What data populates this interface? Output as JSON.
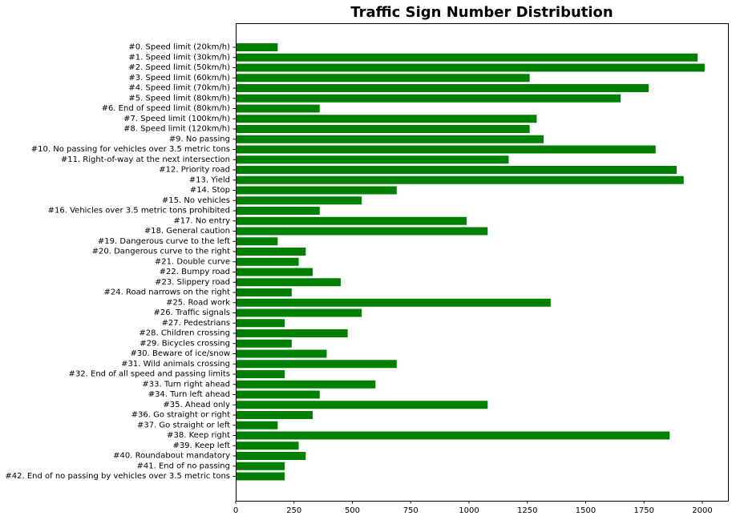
{
  "chart_data": {
    "type": "bar",
    "orientation": "horizontal",
    "title": "Traffic Sign Number Distribution",
    "xlabel": "",
    "ylabel": "",
    "xlim": [
      0,
      2110
    ],
    "xticks": [
      0,
      250,
      500,
      750,
      1000,
      1250,
      1500,
      1750,
      2000
    ],
    "bar_color": "#008000",
    "grid": false,
    "categories": [
      "#0. Speed limit (20km/h)",
      "#1. Speed limit (30km/h)",
      "#2. Speed limit (50km/h)",
      "#3. Speed limit (60km/h)",
      "#4. Speed limit (70km/h)",
      "#5. Speed limit (80km/h)",
      "#6. End of speed limit (80km/h)",
      "#7. Speed limit (100km/h)",
      "#8. Speed limit (120km/h)",
      "#9. No passing",
      "#10. No passing for vehicles over 3.5 metric tons",
      "#11. Right-of-way at the next intersection",
      "#12. Priority road",
      "#13. Yield",
      "#14. Stop",
      "#15. No vehicles",
      "#16. Vehicles over 3.5 metric tons prohibited",
      "#17. No entry",
      "#18. General caution",
      "#19. Dangerous curve to the left",
      "#20. Dangerous curve to the right",
      "#21. Double curve",
      "#22. Bumpy road",
      "#23. Slippery road",
      "#24. Road narrows on the right",
      "#25. Road work",
      "#26. Traffic signals",
      "#27. Pedestrians",
      "#28. Children crossing",
      "#29. Bicycles crossing",
      "#30. Beware of ice/snow",
      "#31. Wild animals crossing",
      "#32. End of all speed and passing limits",
      "#33. Turn right ahead",
      "#34. Turn left ahead",
      "#35. Ahead only",
      "#36. Go straight or right",
      "#37. Go straight or left",
      "#38. Keep right",
      "#39. Keep left",
      "#40. Roundabout mandatory",
      "#41. End of no passing",
      "#42. End of no passing by vehicles over 3.5 metric tons"
    ],
    "values": [
      180,
      1980,
      2010,
      1260,
      1770,
      1650,
      360,
      1290,
      1260,
      1320,
      1800,
      1170,
      1890,
      1920,
      690,
      540,
      360,
      990,
      1080,
      180,
      300,
      270,
      330,
      450,
      240,
      1350,
      540,
      210,
      480,
      240,
      390,
      690,
      210,
      599,
      360,
      1080,
      330,
      180,
      1860,
      270,
      300,
      210,
      210
    ]
  }
}
